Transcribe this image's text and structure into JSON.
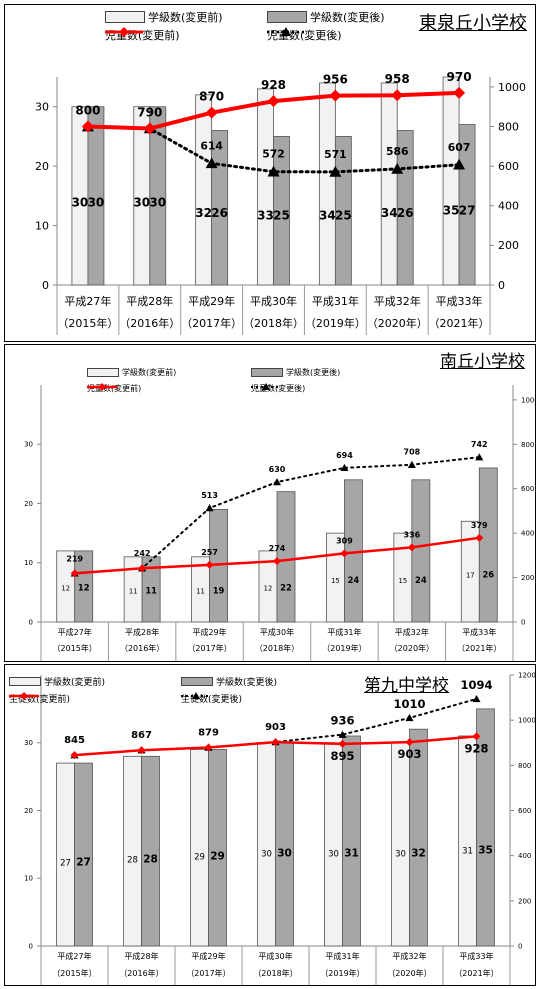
{
  "colors": {
    "bar_before": "#f2f2f2",
    "bar_after": "#a6a6a6",
    "line_before": "#ff0000",
    "line_after": "#000000"
  },
  "chart_data": [
    {
      "type": "bar",
      "title": "東泉丘小学校",
      "categories": [
        "平成27年",
        "平成28年",
        "平成29年",
        "平成30年",
        "平成31年",
        "平成32年",
        "平成33年"
      ],
      "categories_sub": [
        "（2015年）",
        "（2016年）",
        "（2017年）",
        "（2018年）",
        "（2019年）",
        "（2020年）",
        "（2021年）"
      ],
      "series": [
        {
          "name": "学級数(変更前)",
          "type": "bar",
          "axis": "left",
          "values": [
            30,
            30,
            32,
            33,
            34,
            34,
            35
          ]
        },
        {
          "name": "学級数(変更後)",
          "type": "bar",
          "axis": "left",
          "values": [
            30,
            30,
            26,
            25,
            25,
            26,
            27
          ]
        },
        {
          "name": "児童数(変更前)",
          "type": "line",
          "axis": "right",
          "values": [
            800,
            790,
            870,
            928,
            956,
            958,
            970
          ]
        },
        {
          "name": "児童数(変更後)",
          "type": "line",
          "axis": "right",
          "values": [
            800,
            790,
            614,
            572,
            571,
            586,
            607
          ]
        }
      ],
      "ylim": [
        0,
        35
      ],
      "yticks": [
        0,
        10,
        20,
        30
      ],
      "y2lim": [
        0,
        1050
      ],
      "y2ticks": [
        0,
        200,
        400,
        600,
        800,
        1000
      ],
      "legend": "top"
    },
    {
      "type": "bar",
      "title": "南丘小学校",
      "categories": [
        "平成27年",
        "平成28年",
        "平成29年",
        "平成30年",
        "平成31年",
        "平成32年",
        "平成33年"
      ],
      "categories_sub": [
        "（2015年）",
        "（2016年）",
        "（2017年）",
        "（2018年）",
        "（2019年）",
        "（2020年）",
        "（2021年）"
      ],
      "series": [
        {
          "name": "学級数(変更前)",
          "type": "bar",
          "axis": "left",
          "values": [
            12,
            11,
            11,
            12,
            15,
            15,
            17
          ]
        },
        {
          "name": "学級数(変更後)",
          "type": "bar",
          "axis": "left",
          "values": [
            12,
            11,
            19,
            22,
            24,
            24,
            26
          ]
        },
        {
          "name": "児童数(変更前)",
          "type": "line",
          "axis": "right",
          "values": [
            219,
            242,
            257,
            274,
            309,
            336,
            379
          ]
        },
        {
          "name": "児童数(変更後)",
          "type": "line",
          "axis": "right",
          "values": [
            219,
            242,
            513,
            630,
            694,
            708,
            742
          ]
        }
      ],
      "ylim": [
        0,
        40
      ],
      "yticks": [
        0,
        10,
        20,
        30
      ],
      "y2lim": [
        0,
        1067
      ],
      "y2ticks": [
        0,
        200,
        400,
        600,
        800,
        1000
      ],
      "legend": "top"
    },
    {
      "type": "bar",
      "title": "第九中学校",
      "categories": [
        "平成27年",
        "平成28年",
        "平成29年",
        "平成30年",
        "平成31年",
        "平成32年",
        "平成33年"
      ],
      "categories_sub": [
        "（2015年）",
        "（2016年）",
        "（2017年）",
        "（2018年）",
        "（2019年）",
        "（2020年）",
        "（2021年）"
      ],
      "series": [
        {
          "name": "学級数(変更前)",
          "type": "bar",
          "axis": "left",
          "values": [
            27,
            28,
            29,
            30,
            30,
            30,
            31
          ]
        },
        {
          "name": "学級数(変更後)",
          "type": "bar",
          "axis": "left",
          "values": [
            27,
            28,
            29,
            30,
            31,
            32,
            35
          ]
        },
        {
          "name": "生徒数(変更前)",
          "type": "line",
          "axis": "right",
          "values": [
            845,
            867,
            879,
            903,
            895,
            903,
            928
          ]
        },
        {
          "name": "生徒数(変更後)",
          "type": "line",
          "axis": "right",
          "values": [
            845,
            867,
            879,
            903,
            936,
            1010,
            1094
          ]
        }
      ],
      "ylim": [
        0,
        40
      ],
      "yticks": [
        0,
        10,
        20,
        30
      ],
      "y2lim": [
        0,
        1200
      ],
      "y2ticks": [
        0,
        200,
        400,
        600,
        800,
        1000,
        1200
      ],
      "legend": "top"
    }
  ]
}
